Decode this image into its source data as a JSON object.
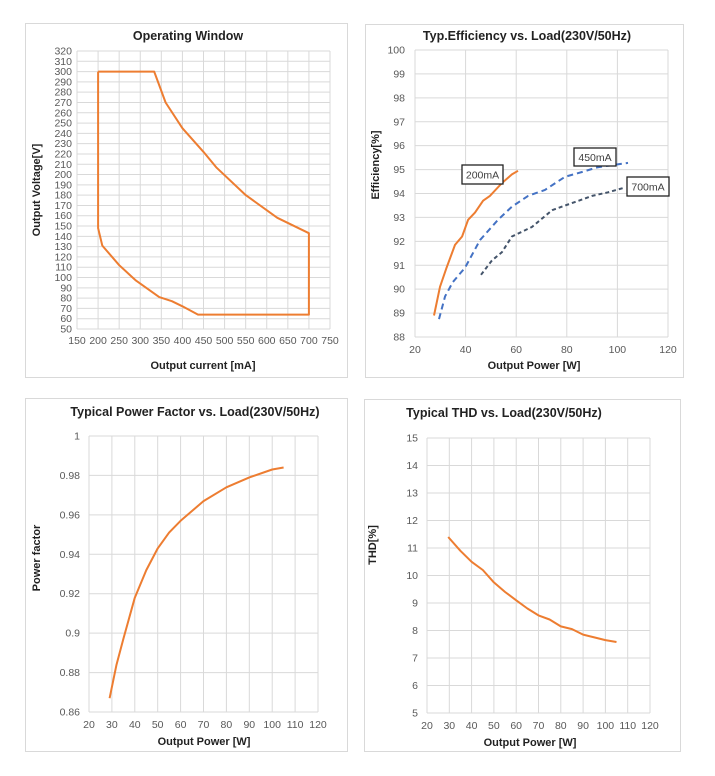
{
  "colors": {
    "orange": "#ED7D31",
    "blue": "#4472C4",
    "gray": "#44546A",
    "grid": "#d9d9d9"
  },
  "chart_data": [
    {
      "id": "operating-window",
      "type": "line",
      "title": "Operating Window",
      "xlabel": "Output current [mA]",
      "ylabel": "Output Voltage[V]",
      "xlim": [
        150,
        750
      ],
      "ylim": [
        50,
        320
      ],
      "xticks": [
        150,
        200,
        250,
        300,
        350,
        400,
        450,
        500,
        550,
        600,
        650,
        700,
        750
      ],
      "yticks": [
        50,
        60,
        70,
        80,
        90,
        100,
        110,
        120,
        130,
        140,
        150,
        160,
        170,
        180,
        190,
        200,
        210,
        220,
        230,
        240,
        250,
        260,
        270,
        280,
        290,
        300,
        310,
        320
      ],
      "grid": true,
      "series": [
        {
          "name": "window",
          "color": "orange",
          "closed": true,
          "x": [
            200,
            333,
            360,
            400,
            450,
            480,
            550,
            625,
            700,
            700,
            437,
            400,
            375,
            345,
            290,
            250,
            210,
            200,
            200
          ],
          "y": [
            300,
            300,
            270,
            245,
            222,
            207,
            180,
            158,
            143,
            64,
            64,
            72,
            77,
            81,
            97,
            112,
            131,
            148,
            300
          ]
        }
      ]
    },
    {
      "id": "efficiency",
      "type": "line",
      "title": "Typ.Efficiency vs. Load(230V/50Hz)",
      "xlabel": "Output Power [W]",
      "ylabel": "Efficiency[%]",
      "xlim": [
        20,
        120
      ],
      "ylim": [
        88,
        100
      ],
      "xticks": [
        20,
        40,
        60,
        80,
        100,
        120
      ],
      "yticks": [
        88,
        89,
        90,
        91,
        92,
        93,
        94,
        95,
        96,
        97,
        98,
        99,
        100
      ],
      "grid": true,
      "series": [
        {
          "name": "200mA",
          "color": "orange",
          "dash": "none",
          "x": [
            27.5,
            29.9,
            32.5,
            35.8,
            38.6,
            41,
            43.7,
            46.9,
            49.6,
            54.4,
            58.3,
            60.7
          ],
          "y": [
            88.9,
            90.1,
            90.9,
            91.85,
            92.2,
            92.9,
            93.2,
            93.7,
            93.9,
            94.44,
            94.8,
            94.95
          ]
        },
        {
          "name": "450mA",
          "color": "blue",
          "dash": "6,4",
          "x": [
            29.5,
            31.9,
            35,
            39.8,
            45.7,
            52.8,
            58.3,
            64.7,
            71.4,
            79.3,
            86,
            92.3,
            104.2
          ],
          "y": [
            88.75,
            89.7,
            90.3,
            90.9,
            92.05,
            92.9,
            93.45,
            93.9,
            94.15,
            94.7,
            94.9,
            95.1,
            95.28
          ]
        },
        {
          "name": "700mA",
          "color": "gray",
          "dash": "4,3",
          "x": [
            46.1,
            50.4,
            54.4,
            58.3,
            66.2,
            74.2,
            82,
            90,
            96.3,
            103
          ],
          "y": [
            90.6,
            91.2,
            91.55,
            92.2,
            92.6,
            93.3,
            93.6,
            93.9,
            94.05,
            94.25
          ]
        }
      ],
      "annotations": [
        "200mA",
        "450mA",
        "700mA"
      ]
    },
    {
      "id": "power-factor",
      "type": "line",
      "title": "Typical Power Factor vs. Load(230V/50Hz)",
      "xlabel": "Output Power [W]",
      "ylabel": "Power factor",
      "xlim": [
        20,
        120
      ],
      "ylim": [
        0.86,
        1
      ],
      "xticks": [
        20,
        30,
        40,
        50,
        60,
        70,
        80,
        90,
        100,
        110,
        120
      ],
      "yticks": [
        "0.86",
        "0.88",
        "0.9",
        "0.92",
        "0.94",
        "0.96",
        "0.98",
        "1"
      ],
      "grid": true,
      "series": [
        {
          "name": "PF",
          "color": "orange",
          "dash": "none",
          "x": [
            29,
            32,
            35,
            40,
            45,
            50,
            55,
            60,
            70,
            80,
            90,
            100,
            105
          ],
          "y": [
            0.867,
            0.884,
            0.897,
            0.918,
            0.932,
            0.943,
            0.951,
            0.957,
            0.967,
            0.974,
            0.979,
            0.983,
            0.984
          ]
        }
      ]
    },
    {
      "id": "thd",
      "type": "line",
      "title": "Typical THD vs. Load(230V/50Hz)",
      "xlabel": "Output Power [W]",
      "ylabel": "THD[%]",
      "xlim": [
        20,
        120
      ],
      "ylim": [
        5,
        15
      ],
      "xticks": [
        20,
        30,
        40,
        50,
        60,
        70,
        80,
        90,
        100,
        110,
        120
      ],
      "yticks": [
        5,
        6,
        7,
        8,
        9,
        10,
        11,
        12,
        13,
        14,
        15
      ],
      "grid": true,
      "series": [
        {
          "name": "THD",
          "color": "orange",
          "dash": "none",
          "x": [
            29.5,
            35,
            40,
            45,
            50,
            55,
            60,
            65,
            70,
            75,
            80,
            85,
            90,
            95,
            100,
            105
          ],
          "y": [
            11.4,
            10.9,
            10.5,
            10.2,
            9.75,
            9.4,
            9.1,
            8.8,
            8.55,
            8.4,
            8.15,
            8.05,
            7.85,
            7.75,
            7.65,
            7.58
          ]
        }
      ]
    }
  ]
}
